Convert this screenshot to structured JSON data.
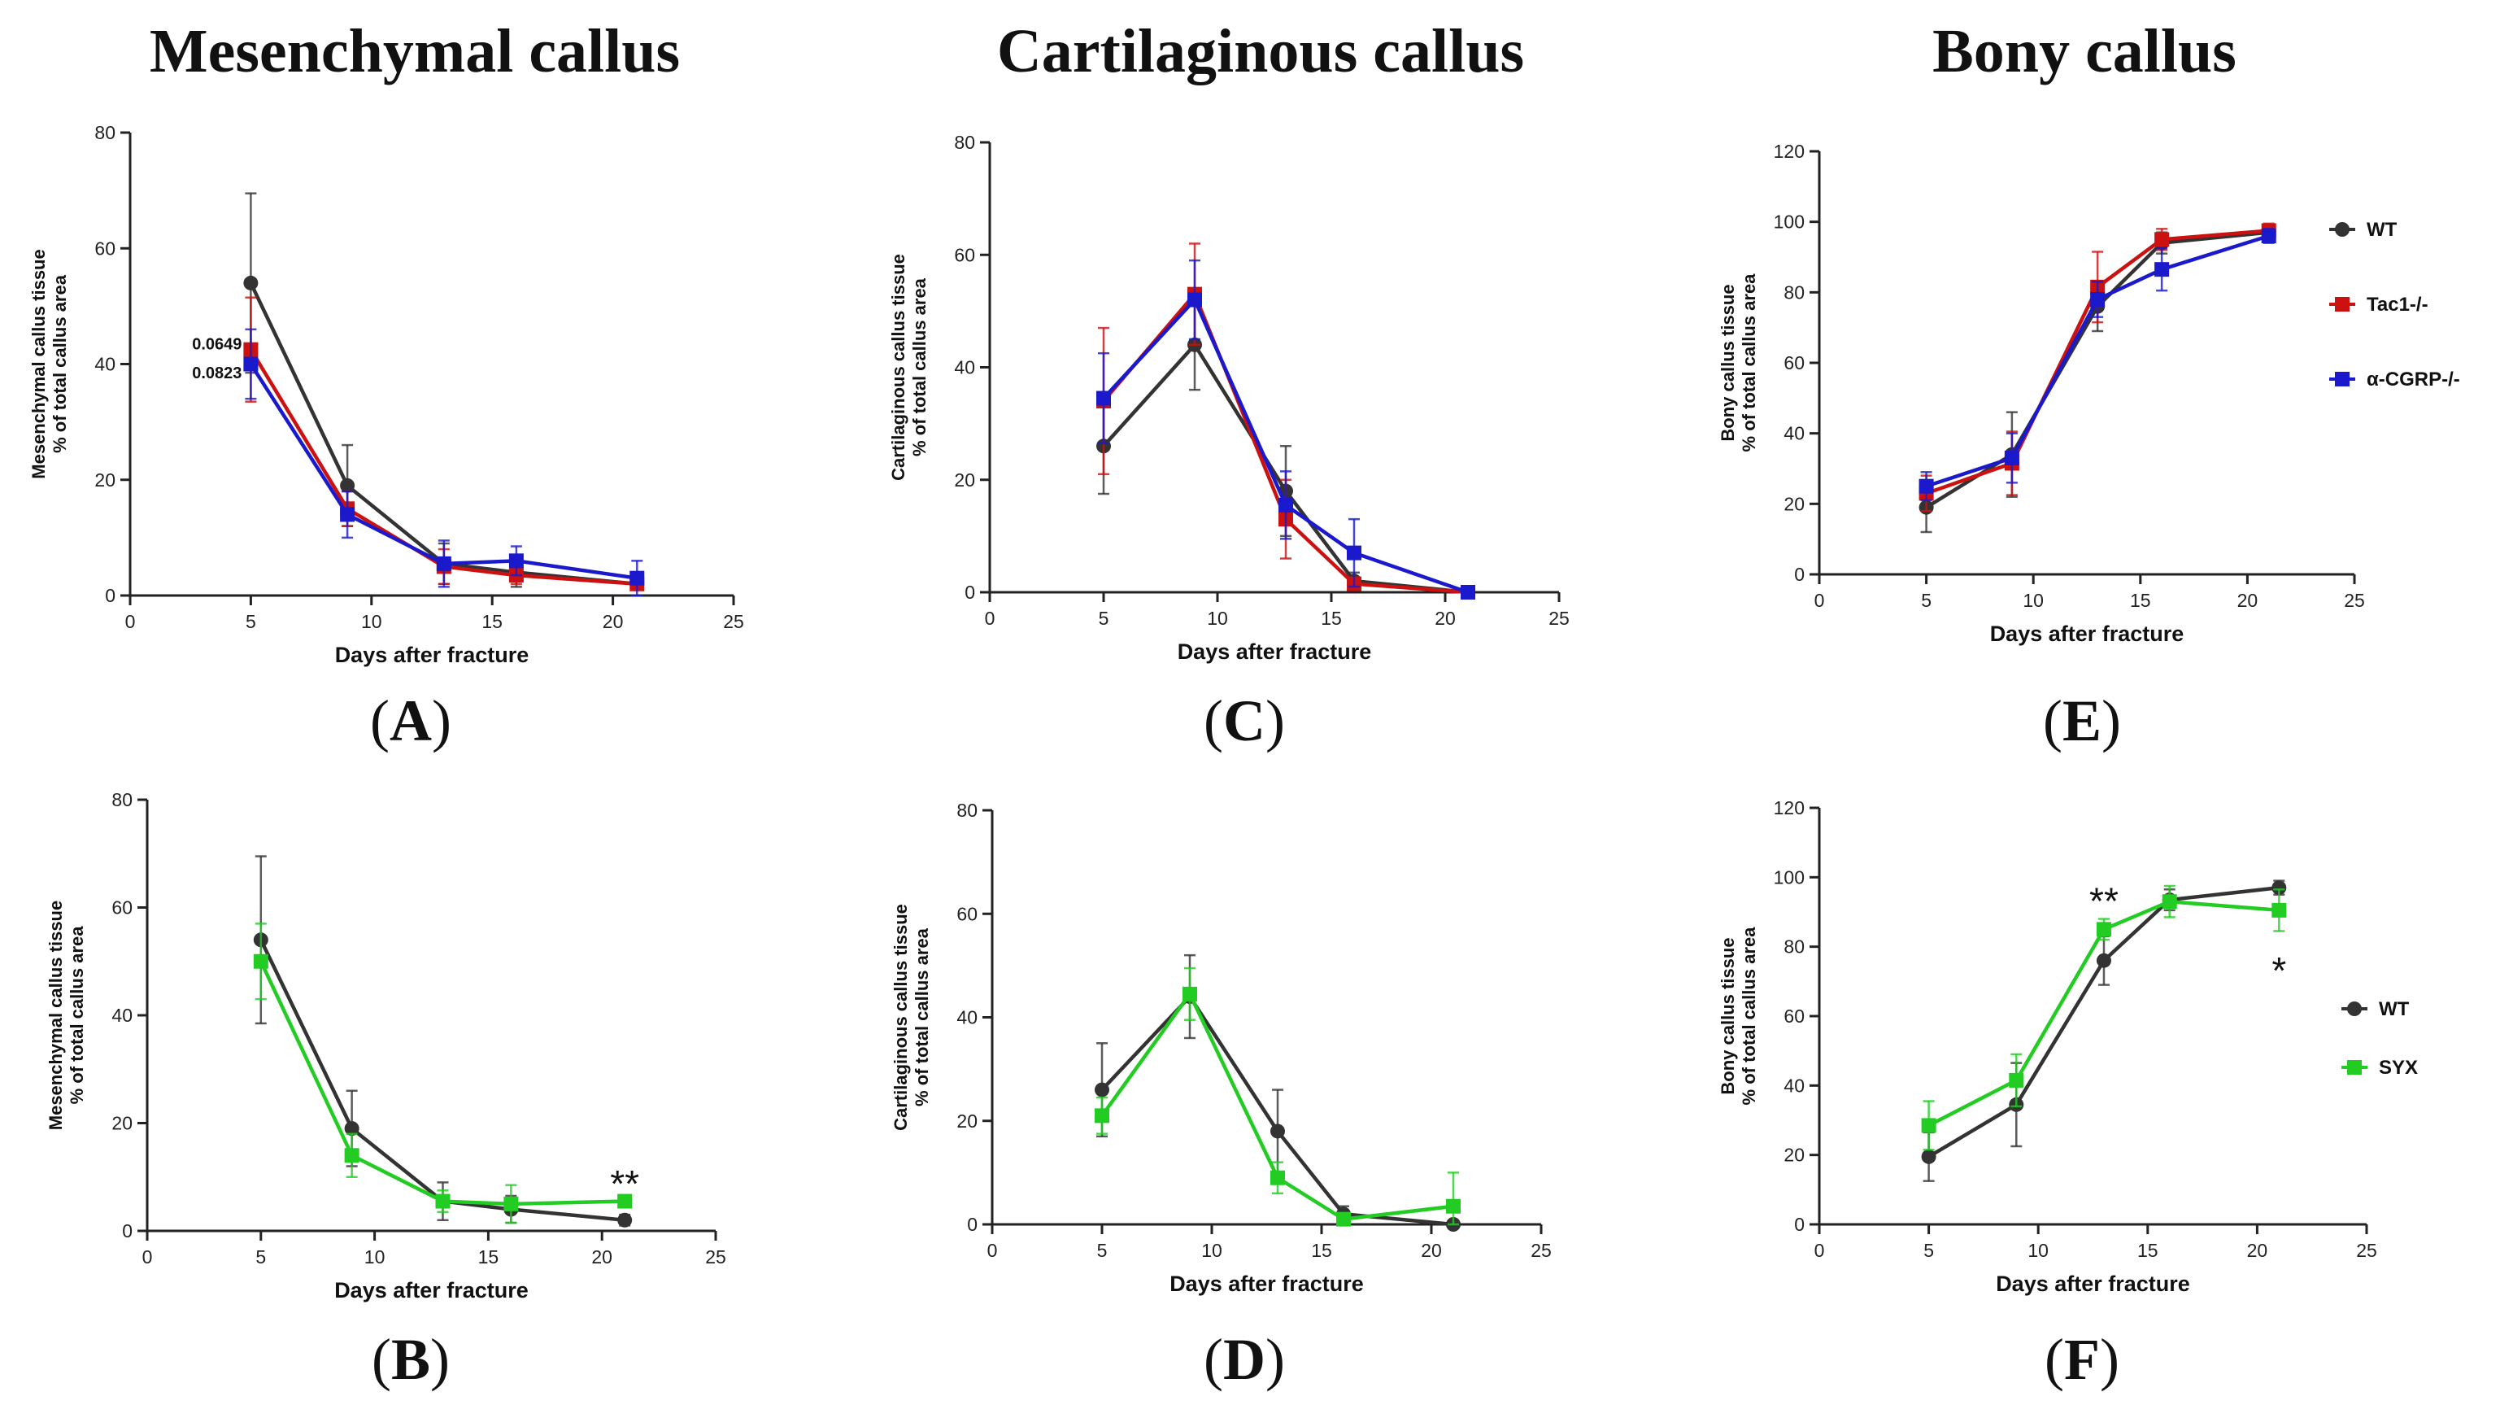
{
  "column_titles": [
    "Mesenchymal callus",
    "Cartilaginous callus",
    "Bony callus"
  ],
  "colors": {
    "wt": "#333333",
    "tac1": "#cc1111",
    "cgrp": "#1a1acc",
    "syx": "#22cc22",
    "axis": "#222222"
  },
  "chart_data": [
    {
      "panel": "A",
      "type": "line",
      "ylabel": [
        "Mesenchymal callus tissue",
        "% of total callus area"
      ],
      "xlabel": "Days after fracture",
      "xlim": [
        0,
        25
      ],
      "xticks": [
        0,
        5,
        10,
        15,
        20,
        25
      ],
      "ylim": [
        0,
        80
      ],
      "yticks": [
        0,
        20,
        40,
        60,
        80
      ],
      "series": [
        {
          "name": "WT",
          "key": "wt",
          "marker": "circle",
          "x": [
            5,
            9,
            13,
            16,
            21
          ],
          "y": [
            54,
            19,
            5.5,
            4,
            2
          ],
          "err": [
            15.5,
            7,
            3.5,
            2.5,
            1
          ]
        },
        {
          "name": "Tac1-/-",
          "key": "tac1",
          "marker": "square",
          "x": [
            5,
            9,
            13,
            16,
            21
          ],
          "y": [
            42.5,
            15,
            5,
            3.5,
            2
          ],
          "err": [
            9,
            3,
            3,
            1.5,
            1
          ]
        },
        {
          "name": "α-CGRP-/-",
          "key": "cgrp",
          "marker": "square",
          "x": [
            5,
            9,
            13,
            16,
            21
          ],
          "y": [
            40,
            14,
            5.5,
            6,
            3
          ],
          "err": [
            6,
            4,
            4,
            2.5,
            3
          ]
        }
      ],
      "annotations": [
        {
          "text": "0.0649",
          "x": 3.6,
          "y": 43.5
        },
        {
          "text": "0.0823",
          "x": 3.6,
          "y": 38.5
        }
      ]
    },
    {
      "panel": "B",
      "type": "line",
      "ylabel": [
        "Mesenchymal callus tissue",
        "% of total callus area"
      ],
      "xlabel": "Days after fracture",
      "xlim": [
        0,
        25
      ],
      "xticks": [
        0,
        5,
        10,
        15,
        20,
        25
      ],
      "ylim": [
        0,
        80
      ],
      "yticks": [
        0,
        20,
        40,
        60,
        80
      ],
      "series": [
        {
          "name": "WT",
          "key": "wt",
          "marker": "circle",
          "x": [
            5,
            9,
            13,
            16,
            21
          ],
          "y": [
            54,
            19,
            5.5,
            4,
            2
          ],
          "err": [
            15.5,
            7,
            3.5,
            2.5,
            1
          ]
        },
        {
          "name": "SYX",
          "key": "syx",
          "marker": "square",
          "x": [
            5,
            9,
            13,
            16,
            21
          ],
          "y": [
            50,
            14,
            5.5,
            5,
            5.5
          ],
          "err": [
            7,
            4,
            2,
            3.5,
            1
          ]
        }
      ],
      "annotations": [
        {
          "text": "**",
          "x": 21,
          "y": 10
        }
      ]
    },
    {
      "panel": "C",
      "type": "line",
      "ylabel": [
        "Cartilaginous callus tissue",
        "% of total callus area"
      ],
      "xlabel": "Days after fracture",
      "xlim": [
        0,
        25
      ],
      "xticks": [
        0,
        5,
        10,
        15,
        20,
        25
      ],
      "ylim": [
        0,
        80
      ],
      "yticks": [
        0,
        20,
        40,
        60,
        80
      ],
      "series": [
        {
          "name": "WT",
          "key": "wt",
          "marker": "circle",
          "x": [
            5,
            9,
            13,
            16,
            21
          ],
          "y": [
            26,
            44,
            18,
            2,
            0
          ],
          "err": [
            8.5,
            8,
            8,
            1.5,
            0
          ]
        },
        {
          "name": "Tac1-/-",
          "key": "tac1",
          "marker": "square",
          "x": [
            5,
            9,
            13,
            16,
            21
          ],
          "y": [
            34,
            53,
            13,
            1.5,
            0
          ],
          "err": [
            13,
            9,
            7,
            1,
            0
          ]
        },
        {
          "name": "α-CGRP-/-",
          "key": "cgrp",
          "marker": "square",
          "x": [
            5,
            9,
            13,
            16,
            21
          ],
          "y": [
            34.5,
            52,
            15.5,
            7,
            0
          ],
          "err": [
            8,
            7,
            6,
            6,
            0
          ]
        }
      ],
      "annotations": []
    },
    {
      "panel": "D",
      "type": "line",
      "ylabel": [
        "Cartilaginous callus tissue",
        "% of total callus area"
      ],
      "xlabel": "Days after fracture",
      "xlim": [
        0,
        25
      ],
      "xticks": [
        0,
        5,
        10,
        15,
        20,
        25
      ],
      "ylim": [
        0,
        80
      ],
      "yticks": [
        0,
        20,
        40,
        60,
        80
      ],
      "series": [
        {
          "name": "WT",
          "key": "wt",
          "marker": "circle",
          "x": [
            5,
            9,
            13,
            16,
            21
          ],
          "y": [
            26,
            44,
            18,
            2,
            0
          ],
          "err": [
            9,
            8,
            8,
            1.5,
            0
          ]
        },
        {
          "name": "SYX",
          "key": "syx",
          "marker": "square",
          "x": [
            5,
            9,
            13,
            16,
            21
          ],
          "y": [
            21,
            44.5,
            9,
            1,
            3.5
          ],
          "err": [
            3.5,
            5,
            3,
            1,
            6.5
          ]
        }
      ],
      "annotations": []
    },
    {
      "panel": "E",
      "type": "line",
      "ylabel": [
        "Bony callus tissue",
        "% of total callus area"
      ],
      "xlabel": "Days after fracture",
      "xlim": [
        0,
        25
      ],
      "xticks": [
        0,
        5,
        10,
        15,
        20,
        25
      ],
      "ylim": [
        0,
        120
      ],
      "yticks": [
        0,
        20,
        40,
        60,
        80,
        100,
        120
      ],
      "series": [
        {
          "name": "WT",
          "key": "wt",
          "marker": "circle",
          "x": [
            5,
            9,
            13,
            16,
            21
          ],
          "y": [
            19,
            34,
            76,
            94,
            97
          ],
          "err": [
            7,
            12,
            7,
            3,
            2
          ]
        },
        {
          "name": "Tac1-/-",
          "key": "tac1",
          "marker": "square",
          "x": [
            5,
            9,
            13,
            16,
            21
          ],
          "y": [
            23,
            31.5,
            81.5,
            95,
            97.5
          ],
          "err": [
            5,
            9,
            10,
            3,
            2
          ]
        },
        {
          "name": "α-CGRP-/-",
          "key": "cgrp",
          "marker": "square",
          "x": [
            5,
            9,
            13,
            16,
            21
          ],
          "y": [
            25,
            33,
            78,
            86.5,
            96
          ],
          "err": [
            4,
            7,
            5,
            6,
            2
          ]
        }
      ],
      "legend": [
        {
          "label": "WT",
          "key": "wt",
          "marker": "circle"
        },
        {
          "label": "Tac1-/-",
          "key": "tac1",
          "marker": "square"
        },
        {
          "label": "α-CGRP-/-",
          "key": "cgrp",
          "marker": "square"
        }
      ],
      "annotations": []
    },
    {
      "panel": "F",
      "type": "line",
      "ylabel": [
        "Bony callus tissue",
        "% of total callus area"
      ],
      "xlabel": "Days after fracture",
      "xlim": [
        0,
        25
      ],
      "xticks": [
        0,
        5,
        10,
        15,
        20,
        25
      ],
      "ylim": [
        0,
        120
      ],
      "yticks": [
        0,
        20,
        40,
        60,
        80,
        100,
        120
      ],
      "series": [
        {
          "name": "WT",
          "key": "wt",
          "marker": "circle",
          "x": [
            5,
            9,
            13,
            16,
            21
          ],
          "y": [
            19.5,
            34.5,
            76,
            93.5,
            97
          ],
          "err": [
            7,
            12,
            7,
            3,
            2
          ]
        },
        {
          "name": "SYX",
          "key": "syx",
          "marker": "square",
          "x": [
            5,
            9,
            13,
            16,
            21
          ],
          "y": [
            28.5,
            41.5,
            85,
            93,
            90.5
          ],
          "err": [
            7,
            7.5,
            3,
            4.5,
            6
          ]
        }
      ],
      "legend": [
        {
          "label": "WT",
          "key": "wt",
          "marker": "circle"
        },
        {
          "label": "SYX",
          "key": "syx",
          "marker": "square"
        }
      ],
      "annotations": [
        {
          "text": "**",
          "x": 13,
          "y": 95
        },
        {
          "text": "*",
          "x": 21,
          "y": 75
        }
      ]
    }
  ]
}
